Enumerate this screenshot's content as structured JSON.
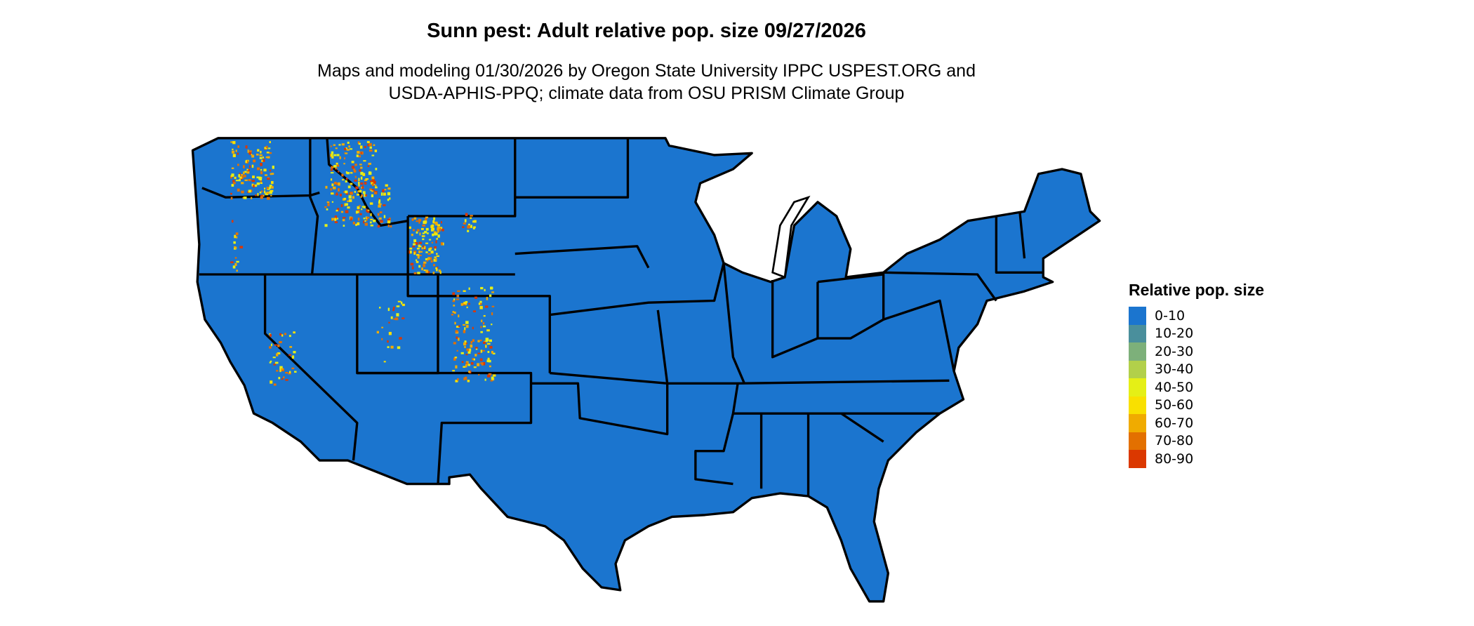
{
  "title": "Sunn pest: Adult relative pop. size 09/27/2026",
  "subtitle_line1": "Maps and modeling 01/30/2026 by Oregon State University IPPC USPEST.ORG and",
  "subtitle_line2": "USDA-APHIS-PPQ; climate data from OSU PRISM Climate Group",
  "map": {
    "region": "Contiguous United States",
    "base_color": "#1b75cf",
    "border_color": "#000000"
  },
  "legend": {
    "title": "Relative pop. size",
    "items": [
      {
        "label": "0-10",
        "color": "#1b75cf"
      },
      {
        "label": "10-20",
        "color": "#4a8f9c"
      },
      {
        "label": "20-30",
        "color": "#7db07a"
      },
      {
        "label": "30-40",
        "color": "#b2d04a"
      },
      {
        "label": "40-50",
        "color": "#e5ef16"
      },
      {
        "label": "50-60",
        "color": "#f9e000"
      },
      {
        "label": "60-70",
        "color": "#f0ab00"
      },
      {
        "label": "70-80",
        "color": "#e37000"
      },
      {
        "label": "80-90",
        "color": "#db3800"
      }
    ]
  }
}
